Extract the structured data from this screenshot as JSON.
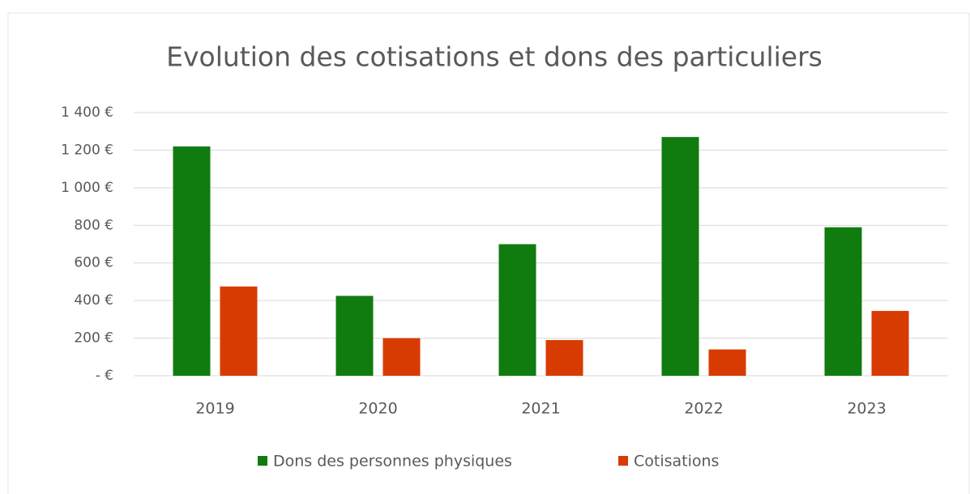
{
  "chart_data": {
    "type": "bar",
    "title": "Evolution des cotisations et dons des particuliers",
    "categories": [
      "2019",
      "2020",
      "2021",
      "2022",
      "2023"
    ],
    "series": [
      {
        "name": "Dons des personnes physiques",
        "color": "#107c10",
        "values": [
          1220,
          425,
          700,
          1270,
          790
        ]
      },
      {
        "name": "Cotisations",
        "color": "#d83b01",
        "values": [
          475,
          200,
          190,
          140,
          345
        ]
      }
    ],
    "ylim": [
      0,
      1400
    ],
    "yticks": [
      {
        "value": 0,
        "label": "-  €"
      },
      {
        "value": 200,
        "label": "200 €"
      },
      {
        "value": 400,
        "label": "400 €"
      },
      {
        "value": 600,
        "label": "600 €"
      },
      {
        "value": 800,
        "label": "800 €"
      },
      {
        "value": 1000,
        "label": "1 000 €"
      },
      {
        "value": 1200,
        "label": "1 200 €"
      },
      {
        "value": 1400,
        "label": "1 400 €"
      }
    ],
    "grid": true,
    "legend": "bottom"
  }
}
